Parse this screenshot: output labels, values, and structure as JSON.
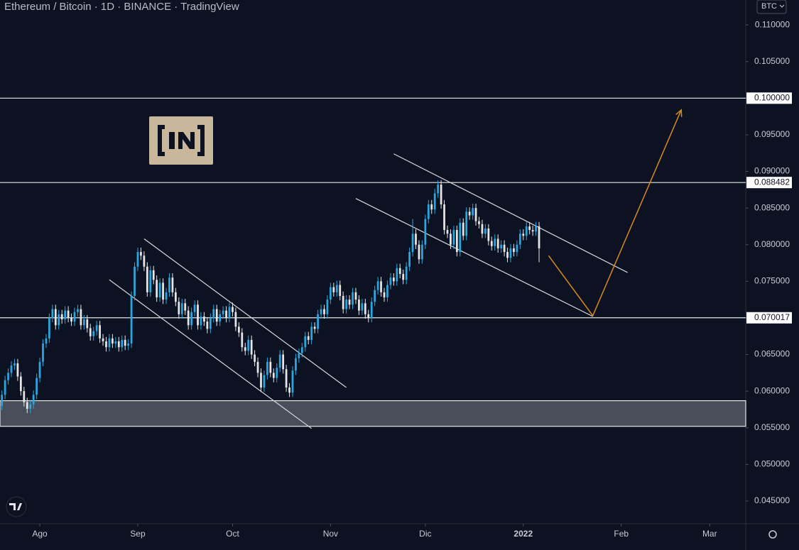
{
  "chart_data": {
    "type": "candlestick",
    "title": "Ethereum / Bitcoin · 1D · BINANCE · TradingView",
    "currency": "BTC",
    "up_color": "#2aa7de",
    "down_color": "#e6e6e6",
    "xlim": [
      -0.6,
      235.4
    ],
    "xticks": [
      {
        "value": 12,
        "label": "Ago"
      },
      {
        "value": 43,
        "label": "Sep"
      },
      {
        "value": 73,
        "label": "Oct"
      },
      {
        "value": 104,
        "label": "Nov"
      },
      {
        "value": 134,
        "label": "Dic"
      },
      {
        "value": 165,
        "label": "2022"
      },
      {
        "value": 196,
        "label": "Feb"
      },
      {
        "value": 224,
        "label": "Mar"
      }
    ],
    "ylim": [
      0.0419,
      0.1134
    ],
    "yticks": [
      {
        "value": 0.045,
        "label": "0.045000"
      },
      {
        "value": 0.05,
        "label": "0.050000"
      },
      {
        "value": 0.055,
        "label": "0.055000"
      },
      {
        "value": 0.06,
        "label": "0.060000"
      },
      {
        "value": 0.065,
        "label": "0.065000"
      },
      {
        "value": 0.07,
        "label": "0.070000"
      },
      {
        "value": 0.075,
        "label": "0.075000"
      },
      {
        "value": 0.08,
        "label": "0.080000"
      },
      {
        "value": 0.085,
        "label": "0.085000"
      },
      {
        "value": 0.09,
        "label": "0.090000"
      },
      {
        "value": 0.095,
        "label": "0.095000"
      },
      {
        "value": 0.1,
        "label": "0.100000"
      },
      {
        "value": 0.105,
        "label": "0.105000"
      },
      {
        "value": 0.11,
        "label": "0.110000"
      }
    ],
    "levels": [
      {
        "value": 0.1,
        "label": "0.100000"
      },
      {
        "value": 0.088482,
        "label": "0.088482"
      },
      {
        "value": 0.070017,
        "label": "0.070017"
      }
    ],
    "zone": [
      0.0552,
      0.0587
    ],
    "trendlines": [
      {
        "x": [
          34,
          98
        ],
        "y": [
          0.0752,
          0.0549
        ]
      },
      {
        "x": [
          45,
          109
        ],
        "y": [
          0.0808,
          0.0605
        ]
      },
      {
        "x": [
          124,
          198
        ],
        "y": [
          0.0924,
          0.0762
        ]
      },
      {
        "x": [
          112,
          187
        ],
        "y": [
          0.0863,
          0.0702
        ]
      }
    ],
    "projection": {
      "color": "#d98a1e",
      "x": [
        173,
        187,
        215
      ],
      "y": [
        0.0785,
        0.0703,
        0.0984
      ]
    },
    "open": [
      0.058,
      0.0595,
      0.0615,
      0.0625,
      0.0635,
      0.0638,
      0.062,
      0.06,
      0.0585,
      0.0576,
      0.0582,
      0.0595,
      0.0618,
      0.064,
      0.0665,
      0.0672,
      0.07,
      0.0712,
      0.069,
      0.0705,
      0.0698,
      0.071,
      0.07,
      0.0695,
      0.0708,
      0.0712,
      0.069,
      0.0698,
      0.0686,
      0.0675,
      0.0682,
      0.069,
      0.0672,
      0.0668,
      0.066,
      0.0672,
      0.0665,
      0.0668,
      0.066,
      0.067,
      0.0662,
      0.0665,
      0.073,
      0.077,
      0.079,
      0.0785,
      0.077,
      0.0735,
      0.0765,
      0.0752,
      0.0728,
      0.0748,
      0.0725,
      0.0735,
      0.0755,
      0.0735,
      0.0722,
      0.0705,
      0.072,
      0.071,
      0.069,
      0.0708,
      0.0718,
      0.069,
      0.0702,
      0.0695,
      0.0685,
      0.07,
      0.0712,
      0.0695,
      0.0705,
      0.071,
      0.07,
      0.0715,
      0.0708,
      0.0688,
      0.068,
      0.066,
      0.0655,
      0.067,
      0.065,
      0.064,
      0.0625,
      0.0605,
      0.0622,
      0.064,
      0.0625,
      0.0618,
      0.0632,
      0.065,
      0.063,
      0.0605,
      0.0598,
      0.0628,
      0.0645,
      0.0652,
      0.066,
      0.0675,
      0.067,
      0.0688,
      0.0685,
      0.0705,
      0.0712,
      0.0705,
      0.0725,
      0.0742,
      0.0735,
      0.0745,
      0.073,
      0.0712,
      0.0725,
      0.0718,
      0.0735,
      0.0725,
      0.071,
      0.072,
      0.0705,
      0.07,
      0.0722,
      0.0738,
      0.075,
      0.0735,
      0.0728,
      0.0745,
      0.0755,
      0.075,
      0.0768,
      0.076,
      0.0752,
      0.077,
      0.079,
      0.0815,
      0.08,
      0.078,
      0.08,
      0.0835,
      0.0855,
      0.0848,
      0.087,
      0.0882,
      0.0855,
      0.082,
      0.0815,
      0.08,
      0.082,
      0.079,
      0.083,
      0.0812,
      0.0845,
      0.084,
      0.085,
      0.0832,
      0.0828,
      0.0815,
      0.0822,
      0.0805,
      0.0798,
      0.0808,
      0.0795,
      0.08,
      0.079,
      0.0782,
      0.0795,
      0.079,
      0.08,
      0.0815,
      0.0812,
      0.0825,
      0.082,
      0.0818,
      0.0825
    ],
    "high": [
      0.0601,
      0.0621,
      0.0631,
      0.0641,
      0.0644,
      0.0644,
      0.0626,
      0.0606,
      0.0591,
      0.0588,
      0.0601,
      0.0624,
      0.0646,
      0.0671,
      0.0678,
      0.0706,
      0.0718,
      0.0718,
      0.0711,
      0.0711,
      0.0716,
      0.0716,
      0.0706,
      0.0714,
      0.0718,
      0.0718,
      0.0704,
      0.0704,
      0.0692,
      0.0688,
      0.0696,
      0.0696,
      0.0678,
      0.0674,
      0.0678,
      0.0678,
      0.0674,
      0.0674,
      0.0676,
      0.0676,
      0.0671,
      0.0736,
      0.0776,
      0.0796,
      0.0796,
      0.0791,
      0.0776,
      0.0771,
      0.0771,
      0.0758,
      0.0754,
      0.0754,
      0.0741,
      0.0761,
      0.0761,
      0.0741,
      0.0728,
      0.0726,
      0.0726,
      0.0716,
      0.0714,
      0.0724,
      0.0724,
      0.0708,
      0.0708,
      0.0701,
      0.0706,
      0.0718,
      0.0718,
      0.0711,
      0.0716,
      0.0716,
      0.0721,
      0.0721,
      0.0714,
      0.0694,
      0.0686,
      0.0666,
      0.0676,
      0.0676,
      0.0656,
      0.0646,
      0.0631,
      0.0628,
      0.0646,
      0.0646,
      0.0631,
      0.0638,
      0.0656,
      0.0656,
      0.0636,
      0.0611,
      0.0634,
      0.0651,
      0.0658,
      0.0666,
      0.0681,
      0.0681,
      0.0694,
      0.0694,
      0.0711,
      0.0718,
      0.0718,
      0.0731,
      0.0748,
      0.0748,
      0.0751,
      0.0751,
      0.0736,
      0.0731,
      0.0731,
      0.0741,
      0.0741,
      0.0731,
      0.0726,
      0.0726,
      0.0711,
      0.0728,
      0.0744,
      0.0756,
      0.0756,
      0.0741,
      0.0751,
      0.0761,
      0.0761,
      0.0774,
      0.0774,
      0.0766,
      0.0776,
      0.0796,
      0.0835,
      0.0821,
      0.0806,
      0.0806,
      0.0841,
      0.0861,
      0.0861,
      0.0876,
      0.0888,
      0.0888,
      0.0861,
      0.0826,
      0.0821,
      0.0826,
      0.0826,
      0.0836,
      0.0836,
      0.0851,
      0.0851,
      0.0856,
      0.0856,
      0.0838,
      0.0834,
      0.0828,
      0.0828,
      0.0811,
      0.0814,
      0.0814,
      0.0806,
      0.0806,
      0.0796,
      0.0801,
      0.0801,
      0.0806,
      0.0821,
      0.0821,
      0.0831,
      0.0831,
      0.0826,
      0.0831,
      0.0831
    ],
    "low": [
      0.0574,
      0.0589,
      0.0609,
      0.0619,
      0.0629,
      0.0614,
      0.0594,
      0.0579,
      0.057,
      0.057,
      0.0576,
      0.0589,
      0.0612,
      0.0634,
      0.0659,
      0.0666,
      0.0694,
      0.0684,
      0.0684,
      0.0692,
      0.0692,
      0.0694,
      0.0689,
      0.0689,
      0.0702,
      0.0684,
      0.0684,
      0.068,
      0.0669,
      0.0669,
      0.0676,
      0.0666,
      0.0662,
      0.0654,
      0.0654,
      0.0659,
      0.0659,
      0.0654,
      0.0654,
      0.0656,
      0.0656,
      0.0659,
      0.0724,
      0.0764,
      0.0779,
      0.0764,
      0.0729,
      0.0729,
      0.0746,
      0.0722,
      0.0722,
      0.0719,
      0.0719,
      0.0729,
      0.0729,
      0.0716,
      0.0699,
      0.0699,
      0.0704,
      0.0684,
      0.0684,
      0.0702,
      0.0684,
      0.0684,
      0.0689,
      0.0679,
      0.0679,
      0.0694,
      0.0689,
      0.0689,
      0.0699,
      0.0694,
      0.0694,
      0.0702,
      0.0682,
      0.0674,
      0.0654,
      0.0649,
      0.0649,
      0.0644,
      0.0634,
      0.0619,
      0.0599,
      0.0599,
      0.0616,
      0.0619,
      0.0612,
      0.0612,
      0.0626,
      0.0624,
      0.0599,
      0.0592,
      0.0592,
      0.0622,
      0.0639,
      0.0646,
      0.0654,
      0.0664,
      0.0664,
      0.0679,
      0.0679,
      0.0699,
      0.0699,
      0.0699,
      0.0719,
      0.0729,
      0.0729,
      0.0724,
      0.0706,
      0.0706,
      0.0712,
      0.0712,
      0.0719,
      0.0704,
      0.0704,
      0.0699,
      0.0694,
      0.0694,
      0.0716,
      0.0732,
      0.0729,
      0.0722,
      0.0722,
      0.0739,
      0.0744,
      0.0744,
      0.0754,
      0.0746,
      0.0746,
      0.0764,
      0.0784,
      0.0794,
      0.0774,
      0.0774,
      0.0794,
      0.0829,
      0.0842,
      0.0842,
      0.0864,
      0.0849,
      0.0814,
      0.0809,
      0.0794,
      0.0794,
      0.0784,
      0.0784,
      0.0806,
      0.0806,
      0.0834,
      0.0834,
      0.0826,
      0.0822,
      0.0809,
      0.0809,
      0.0799,
      0.0792,
      0.0792,
      0.0789,
      0.0789,
      0.0784,
      0.0776,
      0.0776,
      0.0784,
      0.0784,
      0.0794,
      0.0806,
      0.0806,
      0.0814,
      0.0812,
      0.0812,
      0.0776
    ],
    "close": [
      0.0595,
      0.0615,
      0.0625,
      0.0635,
      0.0638,
      0.062,
      0.06,
      0.0585,
      0.0576,
      0.0582,
      0.0595,
      0.0618,
      0.064,
      0.0665,
      0.0672,
      0.07,
      0.0712,
      0.069,
      0.0705,
      0.0698,
      0.071,
      0.07,
      0.0695,
      0.0708,
      0.0712,
      0.069,
      0.0698,
      0.0686,
      0.0675,
      0.0682,
      0.069,
      0.0672,
      0.0668,
      0.066,
      0.0672,
      0.0665,
      0.0668,
      0.066,
      0.067,
      0.0662,
      0.0665,
      0.073,
      0.077,
      0.079,
      0.0785,
      0.077,
      0.0735,
      0.0765,
      0.0752,
      0.0728,
      0.0748,
      0.0725,
      0.0735,
      0.0755,
      0.0735,
      0.0722,
      0.0705,
      0.072,
      0.071,
      0.069,
      0.0708,
      0.0718,
      0.069,
      0.0702,
      0.0695,
      0.0685,
      0.07,
      0.0712,
      0.0695,
      0.0705,
      0.071,
      0.07,
      0.0715,
      0.0708,
      0.0688,
      0.068,
      0.066,
      0.0655,
      0.067,
      0.065,
      0.064,
      0.0625,
      0.0605,
      0.0622,
      0.064,
      0.0625,
      0.0618,
      0.0632,
      0.065,
      0.063,
      0.0605,
      0.0598,
      0.0628,
      0.0645,
      0.0652,
      0.066,
      0.0675,
      0.067,
      0.0688,
      0.0685,
      0.0705,
      0.0712,
      0.0705,
      0.0725,
      0.0742,
      0.0735,
      0.0745,
      0.073,
      0.0712,
      0.0725,
      0.0718,
      0.0735,
      0.0725,
      0.071,
      0.072,
      0.0705,
      0.07,
      0.0722,
      0.0738,
      0.075,
      0.0735,
      0.0728,
      0.0745,
      0.0755,
      0.075,
      0.0768,
      0.076,
      0.0752,
      0.077,
      0.079,
      0.0815,
      0.08,
      0.078,
      0.08,
      0.0835,
      0.0855,
      0.0848,
      0.087,
      0.0882,
      0.0855,
      0.082,
      0.0815,
      0.08,
      0.082,
      0.079,
      0.083,
      0.0812,
      0.0845,
      0.084,
      0.085,
      0.0832,
      0.0828,
      0.0815,
      0.0822,
      0.0805,
      0.0798,
      0.0808,
      0.0795,
      0.08,
      0.079,
      0.0782,
      0.0795,
      0.079,
      0.08,
      0.0815,
      0.0812,
      0.0825,
      0.082,
      0.0818,
      0.0825,
      0.0795
    ]
  }
}
